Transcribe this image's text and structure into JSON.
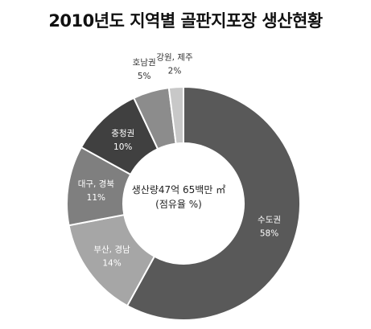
{
  "chart_data": {
    "type": "pie",
    "style": "donut",
    "title": "2010년도 지역별 골판지포장 생산현황",
    "center_text": [
      "생산량47억 65백만 ㎡",
      "(점유율 %)"
    ],
    "slices": [
      {
        "label": "수도권",
        "value": 58,
        "value_label": "58%",
        "color": "#595959"
      },
      {
        "label": "부산, 경남",
        "value": 14,
        "value_label": "14%",
        "color": "#a6a6a6"
      },
      {
        "label": "대구, 경북",
        "value": 11,
        "value_label": "11%",
        "color": "#7f7f7f"
      },
      {
        "label": "충청권",
        "value": 10,
        "value_label": "10%",
        "color": "#404040"
      },
      {
        "label": "호남권",
        "value": 5,
        "value_label": "5%",
        "color": "#8c8c8c"
      },
      {
        "label": "강원, 제주",
        "value": 2,
        "value_label": "2%",
        "color": "#c8c8c8"
      }
    ]
  }
}
